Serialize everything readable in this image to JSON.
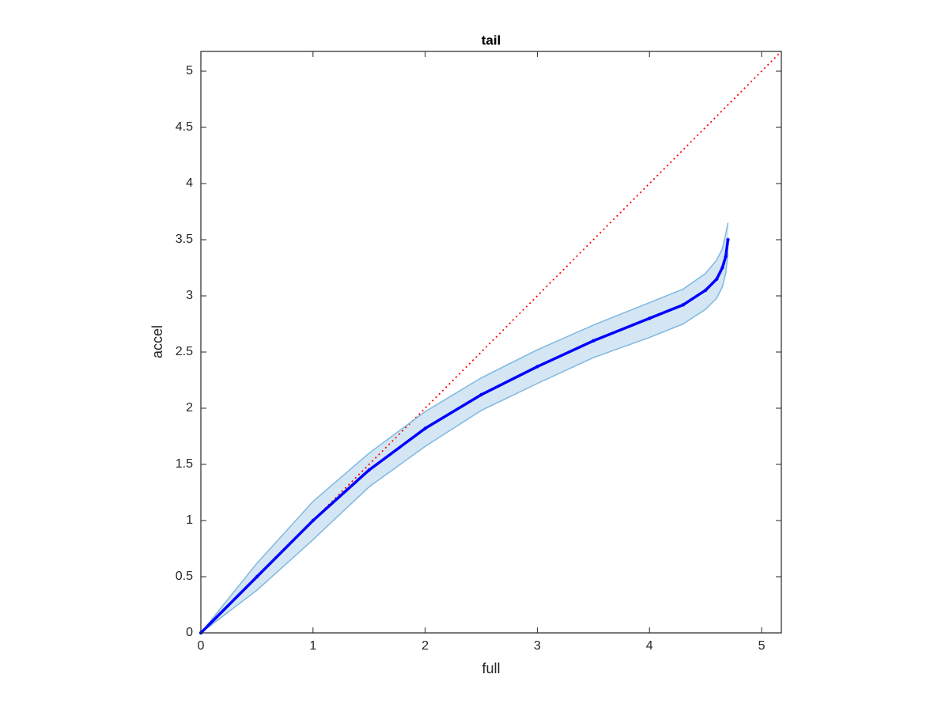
{
  "chart_data": {
    "type": "band-line",
    "title": "tail",
    "x_label": "full",
    "y_label": "accel",
    "x": [
      0,
      0.5,
      1,
      1.5,
      2,
      2.5,
      3,
      3.5,
      4,
      4.3,
      4.5,
      4.6,
      4.65,
      4.68,
      4.7
    ],
    "series": [
      {
        "color": "#0000ff",
        "values": [
          0,
          0.5,
          1.0,
          1.45,
          1.82,
          2.12,
          2.37,
          2.6,
          2.8,
          2.92,
          3.05,
          3.15,
          3.25,
          3.35,
          3.5
        ]
      },
      {
        "color": "#7fb8e0",
        "values": [
          0,
          0.62,
          1.17,
          1.6,
          1.97,
          2.27,
          2.52,
          2.74,
          2.94,
          3.06,
          3.2,
          3.32,
          3.42,
          3.55,
          3.65
        ]
      },
      {
        "color": "#7fb8e0",
        "values": [
          0,
          0.38,
          0.83,
          1.3,
          1.66,
          1.98,
          2.22,
          2.45,
          2.63,
          2.75,
          2.88,
          2.98,
          3.08,
          3.2,
          3.38
        ]
      }
    ],
    "band_color": "#d4e6f3",
    "reference_line": {
      "x": [
        0,
        5.176
      ],
      "values": [
        0,
        5.176
      ],
      "color": "#ff0000"
    },
    "xlim": [
      0,
      5.176
    ],
    "ylim": [
      0,
      5.176
    ],
    "xticks": [
      0,
      1,
      2,
      3,
      4,
      5
    ],
    "yticks": [
      0,
      0.5,
      1,
      1.5,
      2,
      2.5,
      3,
      3.5,
      4,
      4.5,
      5
    ],
    "grid": false
  }
}
